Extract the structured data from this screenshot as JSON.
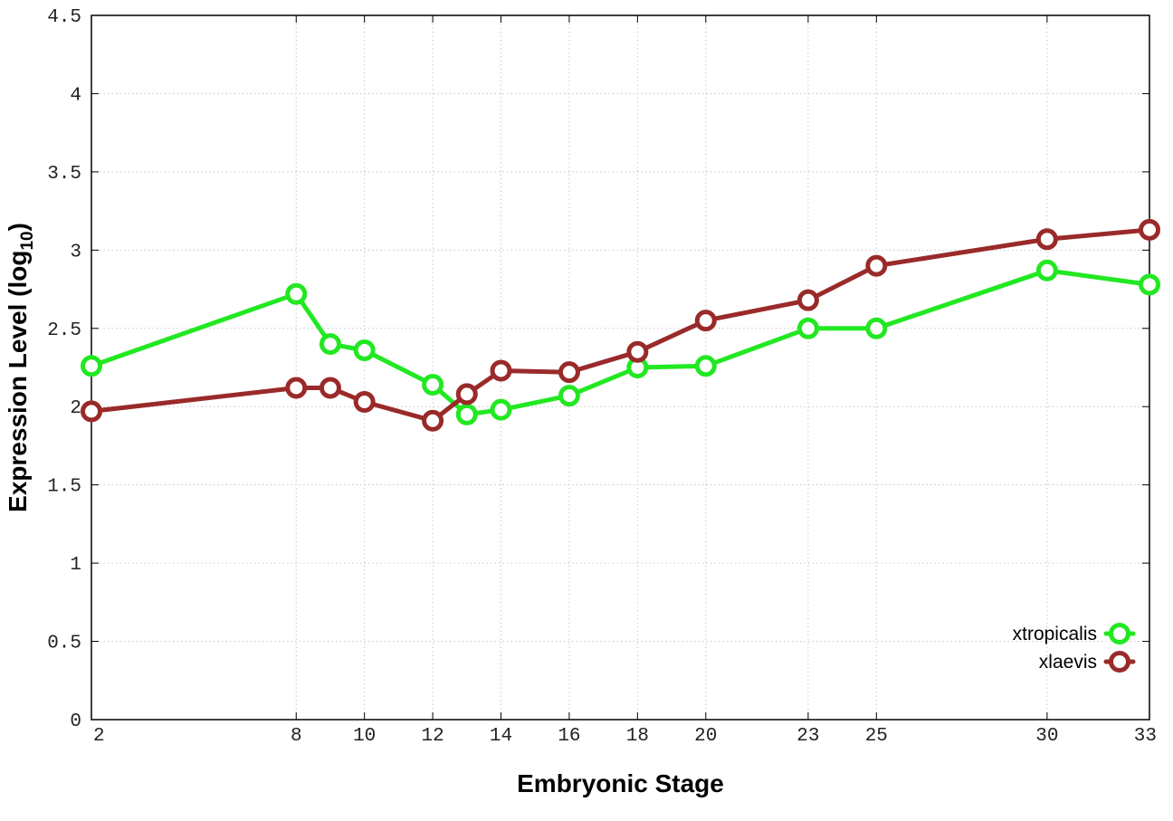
{
  "chart_data": {
    "type": "line",
    "xlabel": "Embryonic Stage",
    "ylabel_main": "Expression Level (log",
    "ylabel_sub": "10",
    "ylabel_close": ")",
    "xlim": [
      2,
      33
    ],
    "ylim": [
      0,
      4.5
    ],
    "x_ticks": [
      2,
      8,
      10,
      12,
      14,
      16,
      18,
      20,
      23,
      25,
      30,
      33
    ],
    "y_ticks": [
      {
        "value": 0,
        "label": "0"
      },
      {
        "value": 0.5,
        "label": "0.5"
      },
      {
        "value": 1,
        "label": "1"
      },
      {
        "value": 1.5,
        "label": "1.5"
      },
      {
        "value": 2,
        "label": "2"
      },
      {
        "value": 2.5,
        "label": "2.5"
      },
      {
        "value": 3,
        "label": "3"
      },
      {
        "value": 3.5,
        "label": "3.5"
      },
      {
        "value": 4,
        "label": "4"
      },
      {
        "value": 4.5,
        "label": "4.5"
      }
    ],
    "grid": true,
    "legend_position": "bottom-right",
    "series": [
      {
        "name": "xtropicalis",
        "color": "#22e822",
        "x": [
          2,
          8,
          9,
          10,
          12,
          13,
          14,
          16,
          18,
          20,
          23,
          25,
          30,
          33
        ],
        "y": [
          2.26,
          2.72,
          2.4,
          2.36,
          2.14,
          1.95,
          1.98,
          2.07,
          2.25,
          2.26,
          2.5,
          2.5,
          2.87,
          2.78
        ]
      },
      {
        "name": "xlaevis",
        "color": "#9a2a2a",
        "x": [
          2,
          8,
          9,
          10,
          12,
          13,
          14,
          16,
          18,
          20,
          23,
          25,
          30,
          33
        ],
        "y": [
          1.97,
          2.12,
          2.12,
          2.03,
          1.91,
          2.08,
          2.23,
          2.22,
          2.35,
          2.55,
          2.68,
          2.9,
          3.07,
          3.13
        ]
      }
    ]
  }
}
